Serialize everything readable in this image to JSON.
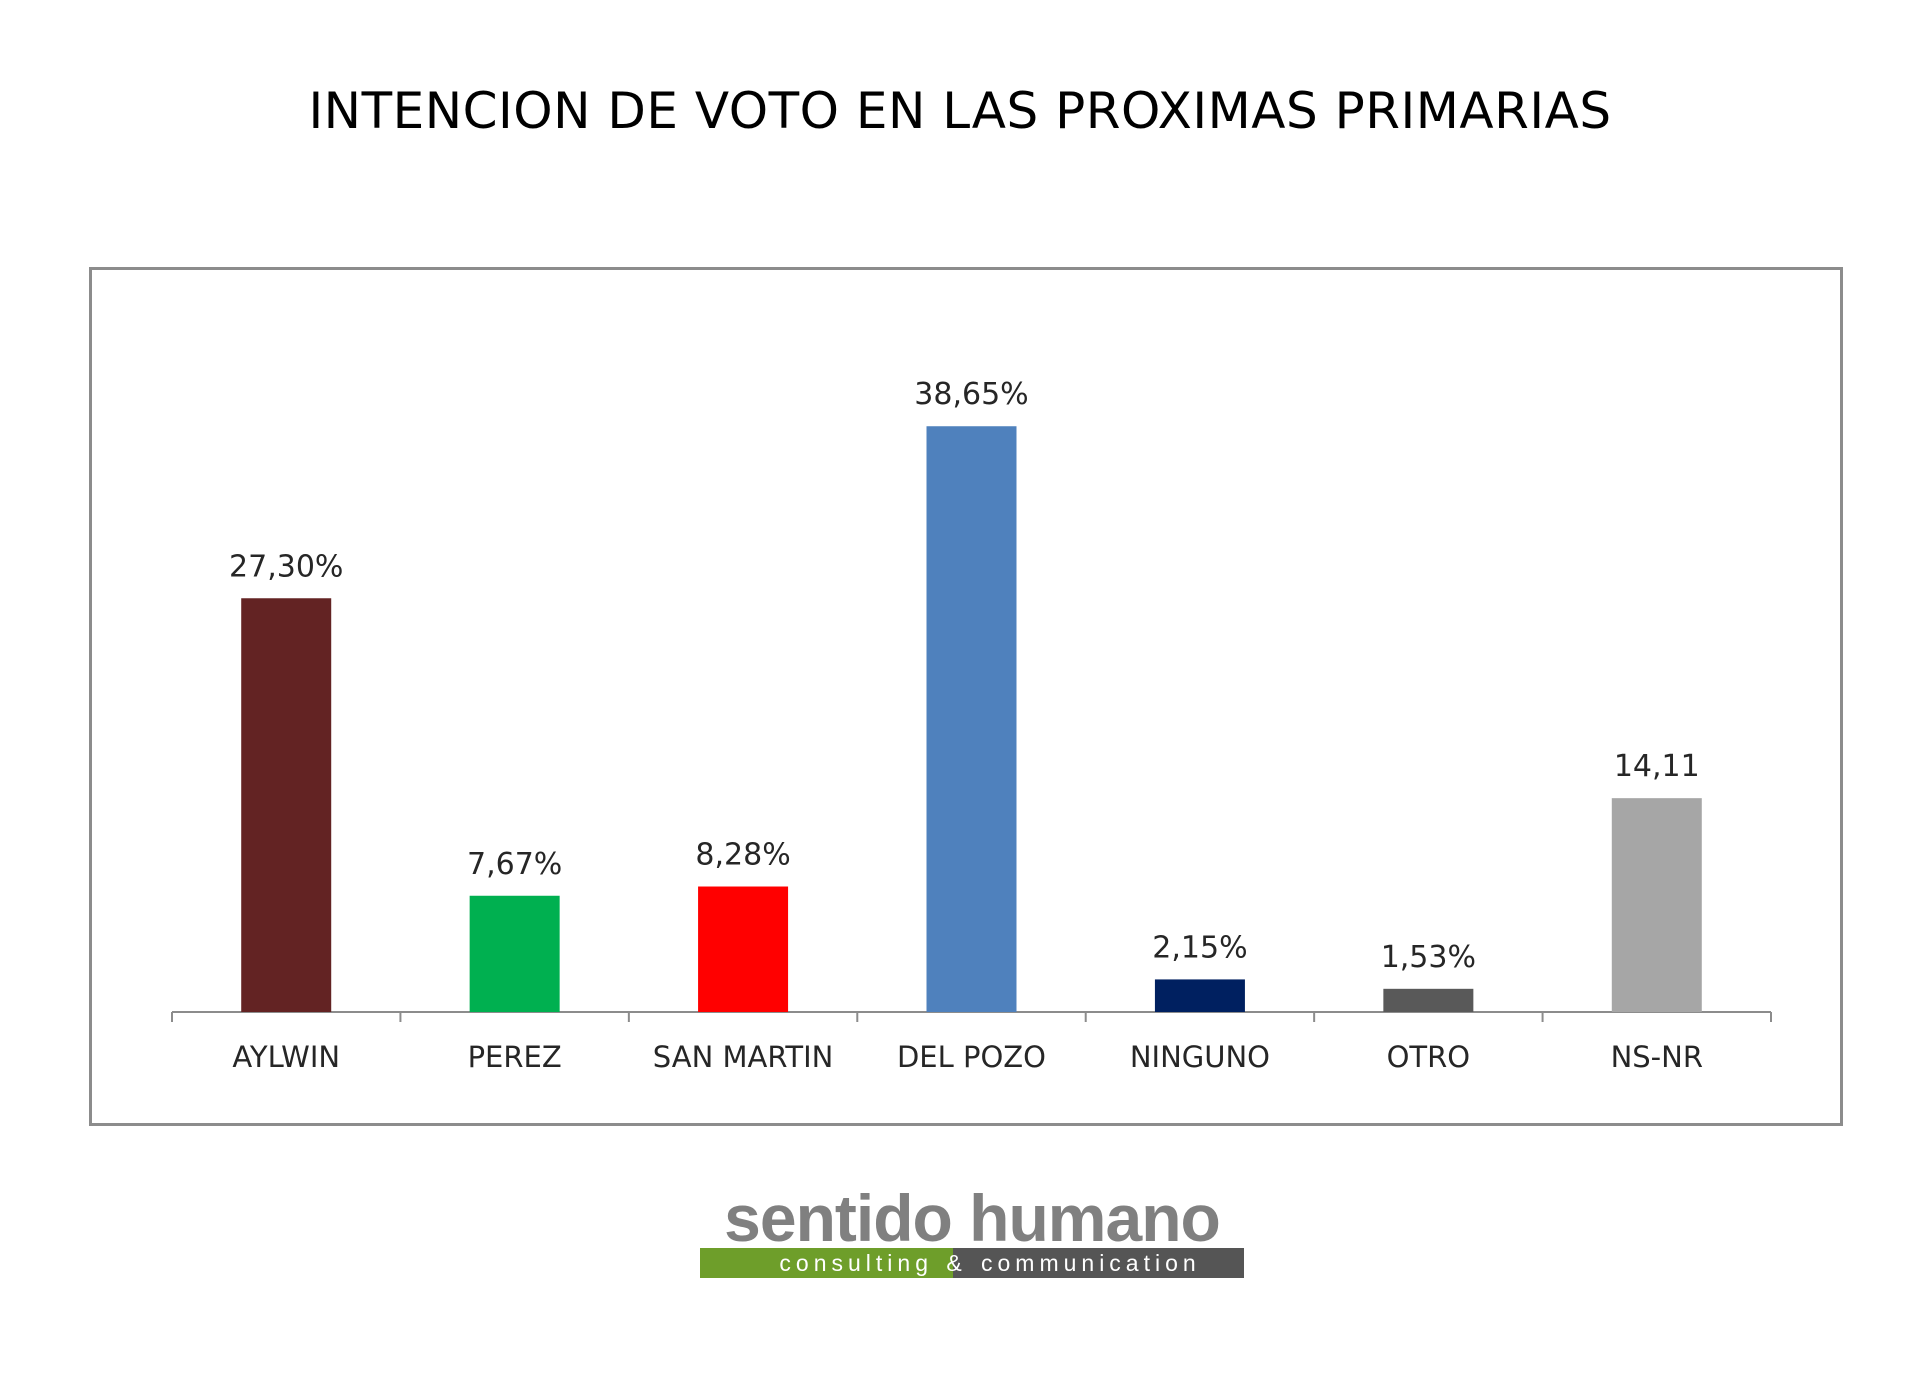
{
  "chart_data": {
    "type": "bar",
    "title": "INTENCION DE VOTO EN LAS PROXIMAS PRIMARIAS",
    "xlabel": "",
    "ylabel": "",
    "ylim": [
      0,
      45
    ],
    "grid": false,
    "legend": "none",
    "categories": [
      "AYLWIN",
      "PEREZ",
      "SAN MARTIN",
      "DEL POZO",
      "NINGUNO",
      "OTRO",
      "NS-NR"
    ],
    "values": [
      27.3,
      7.67,
      8.28,
      38.65,
      2.15,
      1.53,
      14.11
    ],
    "data_labels": [
      "27,30%",
      "7,67%",
      "8,28%",
      "38,65%",
      "2,15%",
      "1,53%",
      "14,11"
    ],
    "colors": [
      "#632323",
      "#00b050",
      "#ff0000",
      "#4f81bd",
      "#002060",
      "#595959",
      "#a6a6a6"
    ]
  },
  "logo": {
    "wordmark": "sentido humano",
    "tagline_left": "consulting",
    "tagline_amp": "&",
    "tagline_right": "communication",
    "colors": {
      "word": "#808080",
      "green": "#6e9e2a",
      "gray": "#555555"
    }
  }
}
